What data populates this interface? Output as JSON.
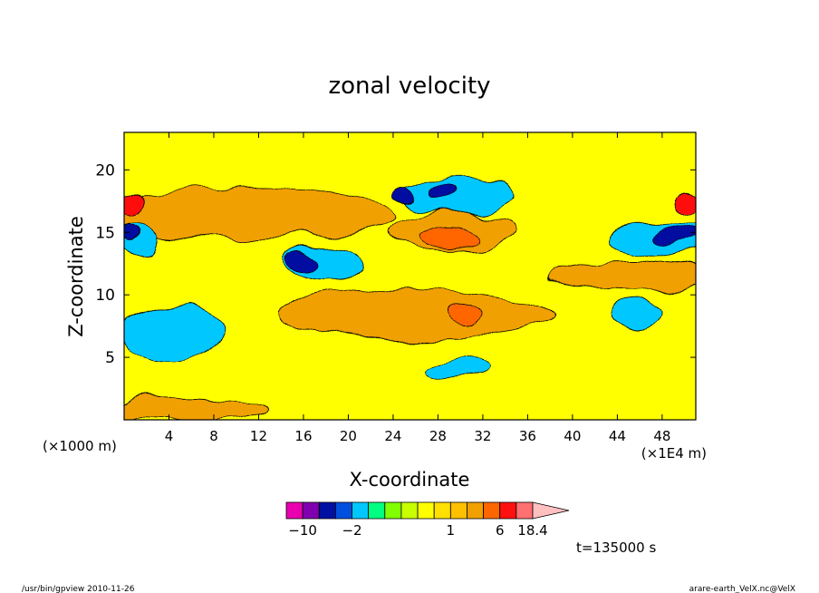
{
  "chart_data": {
    "type": "heatmap",
    "title": "zonal velocity",
    "xlabel": "X-coordinate",
    "ylabel": "Z-coordinate",
    "x_unit_note": "(×1E4 m)",
    "y_unit_note": "(×1000 m)",
    "xlim": [
      0,
      51
    ],
    "ylim": [
      0,
      23
    ],
    "x_ticks": [
      4,
      8,
      12,
      16,
      20,
      24,
      28,
      32,
      36,
      40,
      44,
      48
    ],
    "y_ticks": [
      5,
      10,
      15,
      20
    ],
    "time_label": "t=135000 s",
    "colorbar": {
      "levels": [
        -14,
        -10,
        -6,
        -3,
        -2,
        -1.5,
        -1,
        -0.5,
        0,
        0.5,
        1,
        2,
        4,
        6,
        10,
        14,
        18.4
      ],
      "colors": [
        "#e800b0",
        "#8000b0",
        "#0010a0",
        "#0050e0",
        "#00c8ff",
        "#00ff80",
        "#80ff00",
        "#c8ff00",
        "#ffff00",
        "#ffe000",
        "#ffc000",
        "#f0a000",
        "#ff6600",
        "#ff1010",
        "#ff7070",
        "#ffc0c0",
        "#ffc0c0"
      ],
      "labels": [
        {
          "text": "−10",
          "value": -10
        },
        {
          "text": "−2",
          "value": -2
        },
        {
          "text": "1",
          "value": 1
        },
        {
          "text": "6",
          "value": 6
        },
        {
          "text": "18.4",
          "value": 18.4
        }
      ]
    },
    "regions": [
      {
        "value": 3,
        "x": 10,
        "y": 16.5,
        "rx": 14,
        "ry": 2
      },
      {
        "value": 3,
        "x": 5,
        "y": 0.8,
        "rx": 8,
        "ry": 1
      },
      {
        "value": 3,
        "x": 26,
        "y": 8.5,
        "rx": 12,
        "ry": 2
      },
      {
        "value": 3,
        "x": 45,
        "y": 11.5,
        "rx": 7,
        "ry": 1.2
      },
      {
        "value": 3,
        "x": 29,
        "y": 15,
        "rx": 6,
        "ry": 1.6
      },
      {
        "value": 5,
        "x": 29,
        "y": 14.5,
        "rx": 2.5,
        "ry": 0.9
      },
      {
        "value": 5,
        "x": 30.5,
        "y": 8.5,
        "rx": 1.5,
        "ry": 0.9
      },
      {
        "value": 7,
        "x": 0.6,
        "y": 17.5,
        "rx": 1.2,
        "ry": 0.9
      },
      {
        "value": 7,
        "x": 50.5,
        "y": 17.5,
        "rx": 1,
        "ry": 0.8
      },
      {
        "value": -2,
        "x": 4.5,
        "y": 7,
        "rx": 4.5,
        "ry": 2.3
      },
      {
        "value": -2,
        "x": 18,
        "y": 12.5,
        "rx": 3.5,
        "ry": 1.5
      },
      {
        "value": -2,
        "x": 30,
        "y": 18,
        "rx": 5,
        "ry": 1.5
      },
      {
        "value": -2,
        "x": 48,
        "y": 14.5,
        "rx": 5,
        "ry": 1.4
      },
      {
        "value": -2,
        "x": 1,
        "y": 14.5,
        "rx": 1.6,
        "ry": 1.4
      },
      {
        "value": -2,
        "x": 30,
        "y": 4,
        "rx": 2.5,
        "ry": 0.8
      },
      {
        "value": -2,
        "x": 46,
        "y": 8.5,
        "rx": 2.5,
        "ry": 1
      },
      {
        "value": -5,
        "x": 16,
        "y": 12.5,
        "rx": 1.3,
        "ry": 0.8
      },
      {
        "value": -5,
        "x": 0.6,
        "y": 15,
        "rx": 0.7,
        "ry": 0.8
      },
      {
        "value": -5,
        "x": 49,
        "y": 14.8,
        "rx": 2,
        "ry": 0.8
      },
      {
        "value": -5,
        "x": 28.5,
        "y": 18.3,
        "rx": 1,
        "ry": 0.7
      },
      {
        "value": -5,
        "x": 25,
        "y": 18,
        "rx": 1,
        "ry": 0.5
      }
    ]
  },
  "footer": {
    "left": "/usr/bin/gpview  2010-11-26",
    "right": "arare-earth_VelX.nc@VelX"
  }
}
